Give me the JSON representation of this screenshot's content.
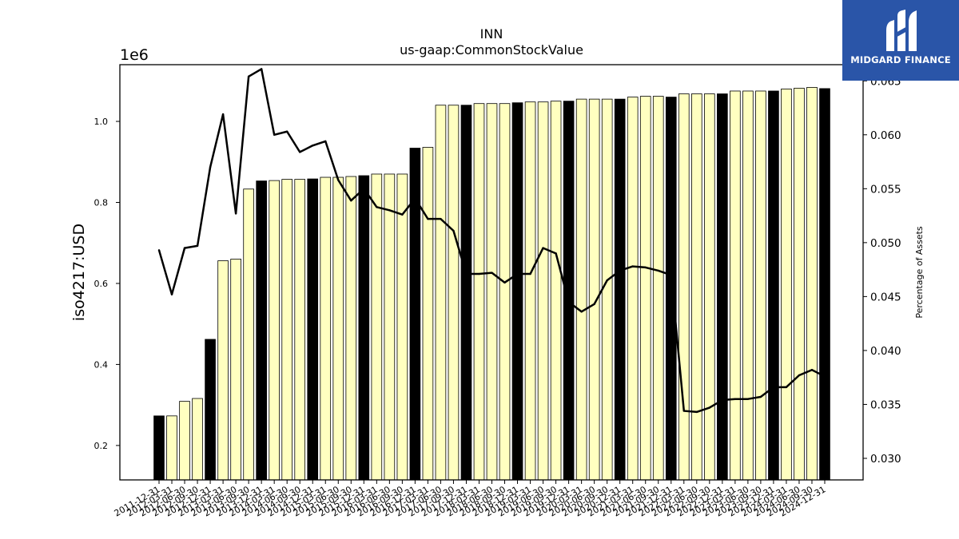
{
  "chart_data": {
    "type": "bar",
    "title": "INN",
    "subtitle": "us-gaap:CommonStockValue",
    "ylabel": "iso4217:USD",
    "y_offset_label": "1e6",
    "y2label": "Percentage of Assets",
    "ylim": [
      0.115,
      1.14
    ],
    "y2lim": [
      0.028,
      0.0665
    ],
    "yticks": [
      0.2,
      0.4,
      0.6,
      0.8,
      1.0
    ],
    "ytick_labels": [
      "0.2",
      "0.4",
      "0.6",
      "0.8",
      "1.0"
    ],
    "y2ticks": [
      0.03,
      0.035,
      0.04,
      0.045,
      0.05,
      0.055,
      0.06,
      0.065
    ],
    "y2tick_labels": [
      "0.030",
      "0.035",
      "0.040",
      "0.045",
      "0.050",
      "0.055",
      "0.060",
      "0.065"
    ],
    "categories": [
      "2011-12-31",
      "2012-03-31",
      "2012-06-30",
      "2012-09-30",
      "2012-12-31",
      "2013-03-31",
      "2013-06-30",
      "2013-09-30",
      "2013-12-31",
      "2014-03-31",
      "2014-06-30",
      "2014-09-30",
      "2014-12-31",
      "2015-03-31",
      "2015-06-30",
      "2015-09-30",
      "2015-12-31",
      "2016-03-31",
      "2016-06-30",
      "2016-09-30",
      "2016-12-31",
      "2017-03-31",
      "2017-06-30",
      "2017-09-30",
      "2017-12-31",
      "2018-03-31",
      "2018-06-30",
      "2018-09-30",
      "2018-12-31",
      "2019-03-31",
      "2019-06-30",
      "2019-09-30",
      "2019-12-31",
      "2020-03-31",
      "2020-06-30",
      "2020-09-30",
      "2020-12-31",
      "2021-03-31",
      "2021-06-30",
      "2021-09-30",
      "2021-12-31",
      "2022-03-31",
      "2022-06-30",
      "2022-09-30",
      "2022-12-31",
      "2023-03-31",
      "2023-06-30",
      "2023-09-30",
      "2023-12-31",
      "2024-03-31",
      "2024-06-30",
      "2024-09-30",
      "2024-12-31"
    ],
    "tick_labels": [
      "2011-12-31",
      "2012-03-31",
      "2012-06-30",
      "2012-09-30",
      "2012-12-31",
      "2013-03-31",
      "2013-06-30",
      "2013-09-30",
      "2013-12-31",
      "2014-03-31",
      "2014-06-30",
      "2014-09-30",
      "2014-12-31",
      "2015-03-31",
      "2015-06-30",
      "2015-09-30",
      "2015-12-31",
      "2016-03-31",
      "2016-06-30",
      "2016-09-30",
      "2016-12-31",
      "2017-03-31",
      "2017-06-30",
      "2017-09-30",
      "2017-12-31",
      "2018-03-31",
      "2018-06-30",
      "2018-09-30",
      "2018-12-31",
      "2019-03-31",
      "2019-06-30",
      "2019-09-30",
      "2019-12-31",
      "2020-03-31",
      "2020-06-30",
      "2020-09-30",
      "2020-12-31",
      "2021-03-31",
      "2021-06-30",
      "2021-09-30",
      "2021-12-31",
      "2022-03-31",
      "2022-06-30",
      "2022-09-30",
      "2022-12-31",
      "2023-03-31",
      "2023-06-30",
      "2023-09-30",
      "2023-12-31",
      "2024-03-31",
      "2024-06-30",
      "2024-09-30",
      "2024-12-31"
    ],
    "series": [
      {
        "values": [
          0.273,
          0.273,
          0.309,
          0.316,
          0.462,
          0.656,
          0.66,
          0.833,
          0.853,
          0.854,
          0.857,
          0.857,
          0.858,
          0.862,
          0.862,
          0.864,
          0.866,
          0.87,
          0.87,
          0.87,
          0.934,
          0.936,
          1.04,
          1.04,
          1.04,
          1.044,
          1.044,
          1.044,
          1.046,
          1.048,
          1.048,
          1.05,
          1.05,
          1.055,
          1.055,
          1.055,
          1.055,
          1.06,
          1.062,
          1.062,
          1.06,
          1.068,
          1.068,
          1.068,
          1.068,
          1.075,
          1.075,
          1.075,
          1.075,
          1.08,
          1.082,
          1.084,
          1.081
        ],
        "bar_highlight": [
          true,
          false,
          false,
          false,
          true,
          false,
          false,
          false,
          true,
          false,
          false,
          false,
          true,
          false,
          false,
          false,
          true,
          false,
          false,
          false,
          true,
          false,
          false,
          false,
          true,
          false,
          false,
          false,
          true,
          false,
          false,
          false,
          true,
          false,
          false,
          false,
          true,
          false,
          false,
          false,
          true,
          false,
          false,
          false,
          true,
          false,
          false,
          false,
          true,
          false,
          false,
          false,
          true
        ]
      },
      {
        "axis": "right",
        "values": [
          0.0493,
          0.0452,
          0.0495,
          0.0497,
          0.057,
          0.0619,
          0.0527,
          0.0654,
          0.0661,
          0.06,
          0.0603,
          0.0584,
          0.059,
          0.0594,
          0.0558,
          0.0539,
          0.055,
          0.0533,
          0.053,
          0.0526,
          0.0541,
          0.0522,
          0.0522,
          0.0511,
          0.0471,
          0.0471,
          0.0472,
          0.0463,
          0.0471,
          0.0471,
          0.0495,
          0.049,
          0.0445,
          0.0436,
          0.0443,
          0.0465,
          0.0474,
          0.0478,
          0.0477,
          0.0474,
          0.047,
          0.0344,
          0.0343,
          0.0347,
          0.0354,
          0.0355,
          0.0355,
          0.0357,
          0.0366,
          0.0366,
          0.0377,
          0.0382,
          0.0376
        ]
      }
    ],
    "colors": {
      "bar_fill": "#ffffc0",
      "bar_highlight_fill": "#000000",
      "bar_edge": "#000000",
      "line": "#000000"
    },
    "grid": false,
    "legend": "none"
  },
  "brand": {
    "name": "MIDGARD FINANCE",
    "background": "#2a55a8",
    "logo_icon": "midgard-mark-icon"
  }
}
